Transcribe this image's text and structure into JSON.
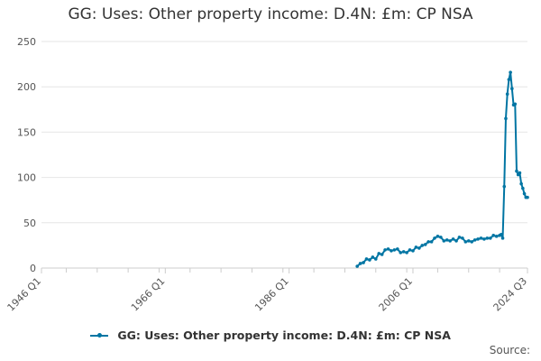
{
  "title": "GG: Uses: Other property income: D.4N: £m: CP NSA",
  "source_label": "Source:",
  "colors": {
    "series": "#0075a3",
    "grid": "#e6e6e6",
    "axis": "#cccccc"
  },
  "chart_data": {
    "type": "line",
    "title": "GG: Uses: Other property income: D.4N: £m: CP NSA",
    "xlabel": "",
    "ylabel": "",
    "ylim": [
      0,
      250
    ],
    "y_ticks": [
      0,
      50,
      100,
      150,
      200,
      250
    ],
    "x_range": [
      "1946 Q1",
      "2024 Q3"
    ],
    "x_tick_labels": [
      "1946 Q1",
      "1966 Q1",
      "1986 Q1",
      "2006 Q1",
      "2024 Q3"
    ],
    "grid": true,
    "legend_position": "bottom",
    "series": [
      {
        "name": "GG: Uses: Other property income: D.4N: £m: CP NSA",
        "color": "#0075a3",
        "points": [
          [
            "1997 Q1",
            2
          ],
          [
            "1997 Q3",
            5
          ],
          [
            "1998 Q1",
            6
          ],
          [
            "1998 Q3",
            10
          ],
          [
            "1999 Q1",
            9
          ],
          [
            "1999 Q3",
            12
          ],
          [
            "2000 Q1",
            10
          ],
          [
            "2000 Q3",
            16
          ],
          [
            "2001 Q1",
            15
          ],
          [
            "2001 Q3",
            20
          ],
          [
            "2002 Q1",
            21
          ],
          [
            "2002 Q3",
            19
          ],
          [
            "2003 Q1",
            20
          ],
          [
            "2003 Q3",
            21
          ],
          [
            "2004 Q1",
            17
          ],
          [
            "2004 Q3",
            18
          ],
          [
            "2005 Q1",
            17
          ],
          [
            "2005 Q3",
            20
          ],
          [
            "2006 Q1",
            19
          ],
          [
            "2006 Q3",
            23
          ],
          [
            "2007 Q1",
            22
          ],
          [
            "2007 Q3",
            25
          ],
          [
            "2008 Q1",
            26
          ],
          [
            "2008 Q3",
            29
          ],
          [
            "2009 Q1",
            29
          ],
          [
            "2009 Q3",
            33
          ],
          [
            "2010 Q1",
            35
          ],
          [
            "2010 Q3",
            34
          ],
          [
            "2011 Q1",
            30
          ],
          [
            "2011 Q3",
            31
          ],
          [
            "2012 Q1",
            30
          ],
          [
            "2012 Q3",
            32
          ],
          [
            "2013 Q1",
            30
          ],
          [
            "2013 Q3",
            34
          ],
          [
            "2014 Q1",
            33
          ],
          [
            "2014 Q3",
            29
          ],
          [
            "2015 Q1",
            30
          ],
          [
            "2015 Q3",
            29
          ],
          [
            "2016 Q1",
            31
          ],
          [
            "2016 Q3",
            32
          ],
          [
            "2017 Q1",
            33
          ],
          [
            "2017 Q3",
            32
          ],
          [
            "2018 Q1",
            33
          ],
          [
            "2018 Q3",
            33
          ],
          [
            "2019 Q1",
            36
          ],
          [
            "2019 Q3",
            35
          ],
          [
            "2020 Q1",
            36
          ],
          [
            "2020 Q2",
            37
          ],
          [
            "2020 Q3",
            33
          ],
          [
            "2020 Q4",
            90
          ],
          [
            "2021 Q1",
            165
          ],
          [
            "2021 Q2",
            192
          ],
          [
            "2021 Q3",
            208
          ],
          [
            "2021 Q4",
            216
          ],
          [
            "2022 Q1",
            198
          ],
          [
            "2022 Q2",
            180
          ],
          [
            "2022 Q3",
            181
          ],
          [
            "2022 Q4",
            107
          ],
          [
            "2023 Q1",
            103
          ],
          [
            "2023 Q2",
            105
          ],
          [
            "2023 Q3",
            93
          ],
          [
            "2023 Q4",
            88
          ],
          [
            "2024 Q1",
            82
          ],
          [
            "2024 Q2",
            78
          ],
          [
            "2024 Q3",
            78
          ]
        ]
      }
    ]
  }
}
